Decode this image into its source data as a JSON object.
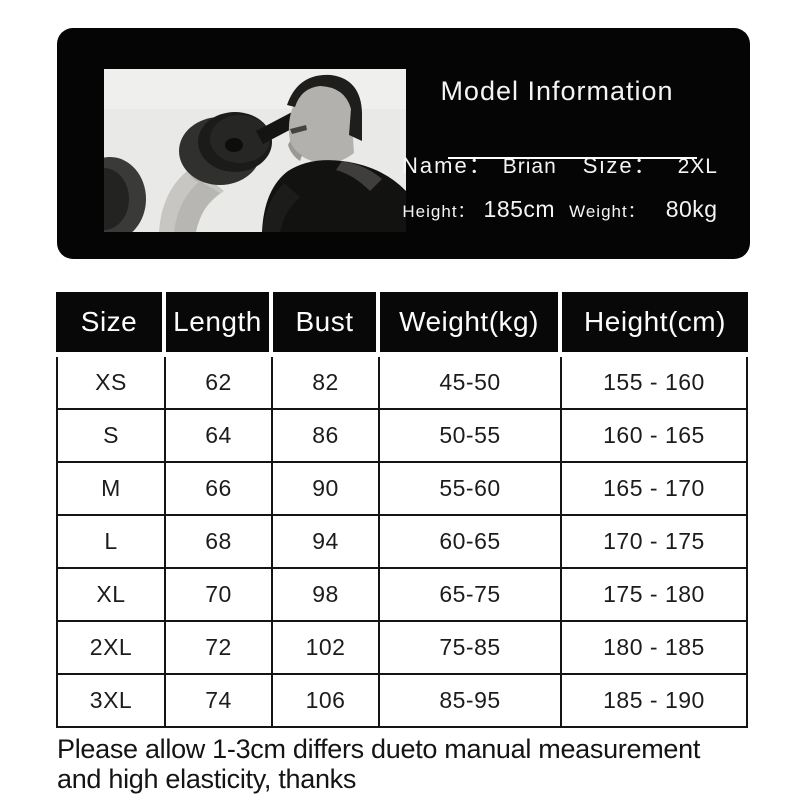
{
  "model_panel": {
    "title": "Model Information",
    "name_label": "Name：",
    "name_value": "Brian",
    "size_label": "Size：",
    "size_value": "2XL",
    "height_label": "Height：",
    "height_value": "185cm",
    "weight_label": "Weight：",
    "weight_value": "80kg"
  },
  "size_table": {
    "headers": [
      "Size",
      "Length",
      "Bust",
      "Weight(kg)",
      "Height(cm)"
    ],
    "rows": [
      [
        "XS",
        "62",
        "82",
        "45-50",
        "155 - 160"
      ],
      [
        "S",
        "64",
        "86",
        "50-55",
        "160 - 165"
      ],
      [
        "M",
        "66",
        "90",
        "55-60",
        "165 - 170"
      ],
      [
        "L",
        "68",
        "94",
        "60-65",
        "170 - 175"
      ],
      [
        "XL",
        "70",
        "98",
        "65-75",
        "175 - 180"
      ],
      [
        "2XL",
        "72",
        "102",
        "75-85",
        "180 - 185"
      ],
      [
        "3XL",
        "74",
        "106",
        "85-95",
        "185 - 190"
      ]
    ]
  },
  "footer_note": {
    "line1": "Please allow 1-3cm differs dueto manual measurement",
    "line2": "and high elasticity, thanks"
  },
  "colors": {
    "panel_bg": "#050505",
    "header_bg": "#080808",
    "header_text": "#fcfcfc",
    "body_text": "#1c1c1c",
    "grid_border": "#141414",
    "photo_bg": "#e9e9e7"
  }
}
